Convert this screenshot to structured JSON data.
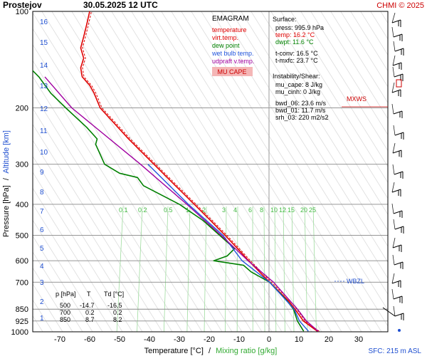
{
  "header": {
    "station": "Prostejov",
    "datetime": "30.05.2025 12 UTC",
    "copyright": "CHMI © 2025"
  },
  "axes": {
    "ylabel_pressure": "Pressure [hPa]",
    "ylabel_sep": "/",
    "ylabel_altitude": "Altitude [km]",
    "xlabel_temp": "Temperature [°C]",
    "xlabel_sep": "/",
    "xlabel_mix": "Mixing ratio [g/kg]"
  },
  "footer": {
    "sfc": "SFC: 215 m ASL"
  },
  "legend": {
    "title": "EMAGRAM",
    "items": [
      {
        "label": "temperature",
        "color": "#e00000"
      },
      {
        "label": "virt.temp.",
        "color": "#e00000"
      },
      {
        "label": "dew point",
        "color": "#008000"
      },
      {
        "label": "wet bulb temp.",
        "color": "#2255dd"
      },
      {
        "label": "udpraft v.temp.",
        "color": "#a000a0"
      }
    ],
    "badge": "MU CAPE",
    "badge_bg": "#f4b6b6",
    "badge_color": "#cc0000"
  },
  "info": {
    "surface_title": "Surface:",
    "press": "press: 995.9 hPa",
    "temp": "temp: 16.2 °C",
    "dwpt": "dwpt: 11.6 °C",
    "tconv": "t-conv: 16.5 °C",
    "tmxfc": "t-mxfc: 23.7 °C",
    "instab_title": "Instability/Shear:",
    "mucape": "mu_cape: 8 J/kg",
    "mucinh": "mu_cinh: 0 J/kg",
    "bwd06": "bwd_06: 23.6 m/s",
    "bwd01": "bwd_01: 11.7 m/s",
    "srh03": "srh_03: 220 m2/s2"
  },
  "markers": {
    "mxws": "MXWS",
    "wbzl": "WBZL"
  },
  "table": {
    "headers": [
      "p [hPa]",
      "T",
      "Td [°C]"
    ],
    "rows": [
      [
        "500",
        "-14.7",
        "-16.5"
      ],
      [
        "700",
        "0.2",
        "0.2"
      ],
      [
        "850",
        "8.7",
        "8.2"
      ]
    ]
  },
  "chart_data": {
    "type": "line",
    "title": "EMAGRAM",
    "xlabel": "Temperature [°C] / Mixing ratio [g/kg]",
    "ylabel": "Pressure [hPa] / Altitude [km]",
    "xlim": [
      -80,
      35
    ],
    "ylim": [
      1000,
      100
    ],
    "y_scale": "log",
    "x_ticks": [
      -70,
      -60,
      -50,
      -40,
      -30,
      -20,
      -10,
      0,
      10,
      20,
      30
    ],
    "pressure_ticks": [
      100,
      200,
      300,
      400,
      500,
      600,
      700,
      850,
      925,
      1000
    ],
    "altitude_ticks": [
      1,
      2,
      3,
      4,
      5,
      6,
      7,
      8,
      9,
      10,
      11,
      12,
      13,
      14,
      15,
      16
    ],
    "mixing_ratio_labels": [
      "0.1",
      "0.2",
      "0.5",
      "1",
      "2",
      "3",
      "4",
      "6",
      "8",
      "10",
      "12",
      "15",
      "20",
      "25"
    ],
    "grid": true,
    "series": [
      {
        "name": "temperature",
        "color": "#e00000",
        "p": [
          995.9,
          925,
          850,
          800,
          700,
          650,
          600,
          550,
          500,
          450,
          400,
          350,
          300,
          250,
          200,
          180,
          170,
          160,
          150,
          140,
          130,
          120,
          110,
          100
        ],
        "t": [
          16.2,
          11.5,
          8.7,
          6.5,
          0.2,
          -3.2,
          -6.8,
          -10.5,
          -14.7,
          -19.5,
          -25.0,
          -31.3,
          -38.5,
          -47.0,
          -56.5,
          -58.5,
          -60.0,
          -62.5,
          -63.0,
          -62.0,
          -63.0,
          -62.0,
          -61.0,
          -60.0
        ]
      },
      {
        "name": "dew point",
        "color": "#008000",
        "p": [
          995.9,
          925,
          850,
          800,
          700,
          650,
          620,
          600,
          580,
          550,
          500,
          450,
          400,
          350,
          330,
          320,
          300,
          260,
          250,
          230,
          200,
          180,
          160,
          150
        ],
        "t": [
          11.6,
          9.5,
          8.2,
          6.0,
          0.2,
          -6.0,
          -8.5,
          -18.5,
          -14.0,
          -11.5,
          -16.5,
          -22.0,
          -30.0,
          -42.0,
          -44.0,
          -50.0,
          -55.0,
          -58.0,
          -57.5,
          -61.0,
          -68.0,
          -73.0,
          -77.0,
          -80.0
        ]
      },
      {
        "name": "wet bulb temp.",
        "color": "#2255dd",
        "p": [
          995.9,
          925,
          850,
          700,
          600,
          500,
          400,
          300
        ],
        "t": [
          13.2,
          10.2,
          8.4,
          0.2,
          -9.0,
          -15.4,
          -27.0,
          -40.5
        ]
      },
      {
        "name": "udpraft v.temp.",
        "color": "#a000a0",
        "p": [
          995.9,
          925,
          850,
          700,
          600,
          500,
          400,
          300,
          200,
          160
        ],
        "t": [
          16.4,
          12.5,
          9.5,
          1.5,
          -7.0,
          -16.0,
          -27.5,
          -43.0,
          -66.0,
          -75.0
        ]
      }
    ],
    "annotations": [
      "MXWS",
      "WBZL",
      "MU CAPE"
    ]
  }
}
